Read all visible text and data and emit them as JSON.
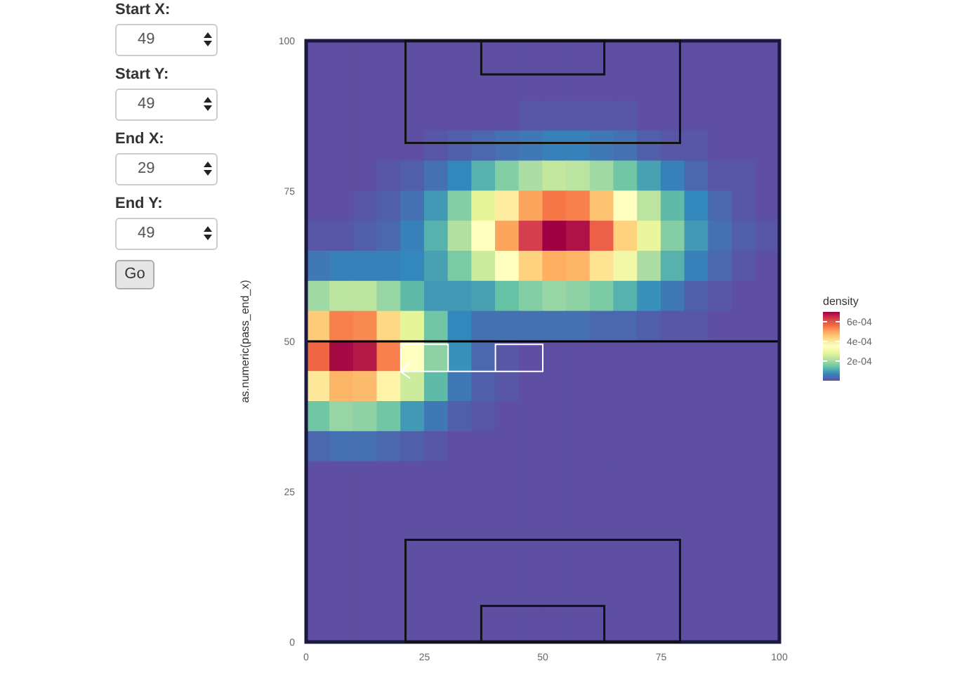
{
  "chart_data": [
    {
      "type": "other",
      "annotations": [
        "Start X:",
        "49",
        "Start Y:",
        "49",
        "End X:",
        "29",
        "End Y:",
        "49",
        "Go"
      ]
    },
    {
      "type": "heatmap",
      "ylabel": "as.numeric(pass_end_x)",
      "clabel": "density",
      "x": [
        2.5,
        7.5,
        12.5,
        17.5,
        22.5,
        27.5,
        32.5,
        37.5,
        42.5,
        47.5,
        52.5,
        57.5,
        62.5,
        67.5,
        72.5,
        77.5,
        82.5,
        87.5,
        92.5,
        97.5
      ],
      "xlim": [
        0,
        100
      ],
      "ylim": [
        0,
        100
      ],
      "xticks": [
        0,
        25,
        50,
        75,
        100
      ],
      "yticks": [
        0,
        25,
        50,
        75,
        100
      ],
      "clim": [
        0,
        0.0007
      ],
      "cticks": [
        {
          "value": 0.0002,
          "label": "2e-04"
        },
        {
          "value": 0.0004,
          "label": "4e-04"
        },
        {
          "value": 0.0006,
          "label": "6e-04"
        }
      ],
      "ref_lines": [
        {
          "axis": "y",
          "value": 50,
          "color": "#000000"
        }
      ],
      "cells": [
        [
          0,
          0,
          0,
          0,
          0,
          0,
          0,
          0,
          0,
          0,
          0,
          0,
          0,
          0,
          0,
          0,
          0,
          0,
          0,
          0
        ],
        [
          0,
          0,
          0,
          0,
          0,
          0,
          0,
          0,
          0,
          0,
          0,
          0,
          0,
          0,
          0,
          0,
          0,
          0,
          0,
          0
        ],
        [
          0,
          0,
          0,
          0,
          0,
          0,
          0,
          0,
          0,
          1e-05,
          1e-05,
          1e-05,
          1e-05,
          1e-05,
          0,
          0,
          0,
          0,
          0,
          0
        ],
        [
          0,
          0,
          0,
          0,
          0,
          1e-05,
          2e-05,
          3e-05,
          4e-05,
          5e-05,
          6e-05,
          6e-05,
          5e-05,
          4e-05,
          2e-05,
          1e-05,
          1e-05,
          0,
          0,
          0
        ],
        [
          0,
          0,
          0,
          1e-05,
          2e-05,
          4e-05,
          7e-05,
          0.00012,
          0.00017,
          0.00021,
          0.00024,
          0.00023,
          0.0002,
          0.00015,
          0.0001,
          6e-05,
          3e-05,
          1e-05,
          1e-05,
          0
        ],
        [
          0,
          0,
          1e-05,
          2e-05,
          4e-05,
          9e-05,
          0.00017,
          0.00028,
          0.00039,
          0.0005,
          0.00055,
          0.00054,
          0.00046,
          0.00035,
          0.00023,
          0.00013,
          7e-05,
          3e-05,
          1e-05,
          0
        ],
        [
          1e-05,
          1e-05,
          2e-05,
          3e-05,
          6e-05,
          0.00012,
          0.00022,
          0.00035,
          0.0005,
          0.00063,
          0.0007,
          0.00068,
          0.00058,
          0.00044,
          0.00029,
          0.00017,
          9e-05,
          4e-05,
          2e-05,
          1e-05
        ],
        [
          5e-05,
          6e-05,
          6e-05,
          6e-05,
          7e-05,
          0.0001,
          0.00016,
          0.00025,
          0.00035,
          0.00044,
          0.00049,
          0.00048,
          0.00041,
          0.00031,
          0.00021,
          0.00012,
          6e-05,
          3e-05,
          1e-05,
          0
        ],
        [
          0.0002,
          0.00023,
          0.00023,
          0.00019,
          0.00013,
          9e-05,
          9e-05,
          0.0001,
          0.00014,
          0.00017,
          0.00019,
          0.00018,
          0.00016,
          0.00012,
          8e-05,
          5e-05,
          2e-05,
          1e-05,
          0,
          0
        ],
        [
          0.00045,
          0.00054,
          0.00053,
          0.00043,
          0.00028,
          0.00015,
          7e-05,
          4e-05,
          4e-05,
          4e-05,
          4e-05,
          4e-05,
          3e-05,
          3e-05,
          2e-05,
          1e-05,
          1e-05,
          0,
          0,
          0
        ],
        [
          0.00057,
          0.00069,
          0.00067,
          0.00054,
          0.00035,
          0.00018,
          8e-05,
          3e-05,
          1e-05,
          0,
          0,
          0,
          0,
          0,
          0,
          0,
          0,
          0,
          0,
          0
        ],
        [
          0.0004,
          0.00048,
          0.00047,
          0.00038,
          0.00025,
          0.00013,
          5e-05,
          2e-05,
          1e-05,
          0,
          0,
          0,
          0,
          0,
          0,
          0,
          0,
          0,
          0,
          0
        ],
        [
          0.00015,
          0.00019,
          0.00018,
          0.00015,
          9e-05,
          5e-05,
          2e-05,
          1e-05,
          0,
          0,
          0,
          0,
          0,
          0,
          0,
          0,
          0,
          0,
          0,
          0
        ],
        [
          3e-05,
          4e-05,
          4e-05,
          3e-05,
          2e-05,
          1e-05,
          0,
          0,
          0,
          0,
          0,
          0,
          0,
          0,
          0,
          0,
          0,
          0,
          0,
          0
        ],
        [
          0,
          0,
          0,
          0,
          0,
          0,
          0,
          0,
          0,
          0,
          0,
          0,
          0,
          0,
          0,
          0,
          0,
          0,
          0,
          0
        ],
        [
          0,
          0,
          0,
          0,
          0,
          0,
          0,
          0,
          0,
          0,
          0,
          0,
          0,
          0,
          0,
          0,
          0,
          0,
          0,
          0
        ],
        [
          0,
          0,
          0,
          0,
          0,
          0,
          0,
          0,
          0,
          0,
          0,
          0,
          0,
          0,
          0,
          0,
          0,
          0,
          0,
          0
        ],
        [
          0,
          0,
          0,
          0,
          0,
          0,
          0,
          0,
          0,
          0,
          0,
          0,
          0,
          0,
          0,
          0,
          0,
          0,
          0,
          0
        ],
        [
          0,
          0,
          0,
          0,
          0,
          0,
          0,
          0,
          0,
          0,
          0,
          0,
          0,
          0,
          0,
          0,
          0,
          0,
          0,
          0
        ],
        [
          0,
          0,
          0,
          0,
          0,
          0,
          0,
          0,
          0,
          0,
          0,
          0,
          0,
          0,
          0,
          0,
          0,
          0,
          0,
          0
        ]
      ]
    }
  ]
}
